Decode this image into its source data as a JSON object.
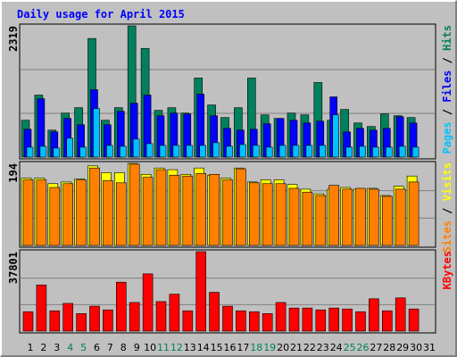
{
  "chart_data": [
    {
      "type": "bar",
      "title": "Daily usage for April 2015",
      "legend_separator": " / ",
      "ylim": [
        0,
        2319
      ],
      "yticks": [
        2319
      ],
      "grid": true,
      "series": [
        {
          "name": "Hits",
          "color": "#00805c",
          "values": [
            651,
            1096,
            476,
            778,
            873,
            2096,
            651,
            873,
            2319,
            1921,
            826,
            873,
            778,
            1397,
            921,
            699,
            873,
            1397,
            746,
            683,
            778,
            746,
            1318,
            651,
            842,
            603,
            540,
            762,
            730,
            699,
            null
          ]
        },
        {
          "name": "Files",
          "color": "#0000ff",
          "values": [
            492,
            1032,
            445,
            683,
            572,
            1191,
            572,
            810,
            953,
            1096,
            730,
            778,
            762,
            1112,
            730,
            508,
            476,
            492,
            588,
            683,
            651,
            603,
            635,
            1064,
            445,
            508,
            476,
            508,
            715,
            603,
            null
          ]
        },
        {
          "name": "Pages",
          "color": "#00c0ff",
          "values": [
            175,
            191,
            159,
            334,
            175,
            857,
            206,
            191,
            318,
            238,
            206,
            206,
            206,
            206,
            254,
            191,
            222,
            206,
            175,
            206,
            206,
            206,
            206,
            746,
            175,
            191,
            175,
            175,
            191,
            175,
            null
          ]
        }
      ]
    },
    {
      "type": "bar",
      "ylim": [
        0,
        194
      ],
      "yticks": [
        194
      ],
      "grid": true,
      "series": [
        {
          "name": "Visits",
          "color": "#ffff00",
          "values": [
            159,
            159,
            146,
            150,
            157,
            188,
            172,
            172,
            194,
            168,
            183,
            179,
            168,
            183,
            166,
            159,
            183,
            150,
            155,
            155,
            144,
            133,
            122,
            133,
            137,
            133,
            135,
            118,
            140,
            164,
            null
          ]
        },
        {
          "name": "Sites",
          "color": "#ff8000",
          "values": [
            155,
            155,
            137,
            146,
            155,
            183,
            153,
            148,
            192,
            161,
            179,
            166,
            164,
            170,
            168,
            155,
            181,
            148,
            146,
            146,
            135,
            126,
            118,
            142,
            133,
            135,
            133,
            116,
            133,
            150,
            null
          ]
        }
      ]
    },
    {
      "type": "bar",
      "ylim": [
        0,
        37801
      ],
      "yticks": [
        37801
      ],
      "grid": true,
      "categories": [
        "1",
        "2",
        "3",
        "4",
        "5",
        "6",
        "7",
        "8",
        "9",
        "10",
        "11",
        "12",
        "13",
        "14",
        "15",
        "16",
        "17",
        "18",
        "19",
        "20",
        "21",
        "22",
        "23",
        "24",
        "25",
        "26",
        "27",
        "28",
        "29",
        "30",
        "31"
      ],
      "category_colors": [
        "#000000",
        "#000000",
        "#000000",
        "#00805c",
        "#00805c",
        "#000000",
        "#000000",
        "#000000",
        "#000000",
        "#000000",
        "#00805c",
        "#00805c",
        "#000000",
        "#000000",
        "#000000",
        "#000000",
        "#000000",
        "#00805c",
        "#00805c",
        "#000000",
        "#000000",
        "#000000",
        "#000000",
        "#000000",
        "#00805c",
        "#00805c",
        "#000000",
        "#000000",
        "#000000",
        "#000000",
        "#000000"
      ],
      "series": [
        {
          "name": "KBytes",
          "color": "#ff0000",
          "values": [
            9230,
            21975,
            9670,
            13185,
            8350,
            11865,
            10110,
            23295,
            13625,
            27250,
            14065,
            17580,
            9670,
            37801,
            18460,
            11865,
            9670,
            9230,
            8350,
            13625,
            10990,
            10990,
            10110,
            10990,
            10550,
            9230,
            15380,
            9670,
            15820,
            10550,
            null
          ]
        }
      ]
    }
  ]
}
